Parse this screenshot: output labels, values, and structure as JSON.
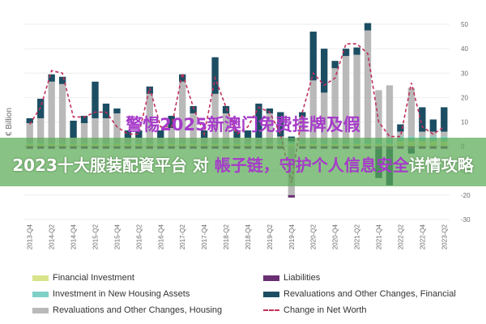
{
  "overlay": {
    "line1": "警惕2025新澳门免费挂牌及假",
    "line2_lead": "2023十大服装配資平台 对 ",
    "line2_purple": "帳子链，守护个人信息安全",
    "line2_tail": "详情攻略"
  },
  "chart_data": {
    "type": "bar",
    "ylabel": "€ Billion",
    "ylim": [
      -30,
      50
    ],
    "yticks": [
      -30,
      -20,
      -10,
      0,
      10,
      20,
      30,
      40,
      50
    ],
    "categories": [
      "2013-Q4",
      "2014-Q1",
      "2014-Q2",
      "2014-Q3",
      "2014-Q4",
      "2015-Q1",
      "2015-Q2",
      "2015-Q3",
      "2015-Q4",
      "2016-Q1",
      "2016-Q2",
      "2016-Q3",
      "2016-Q4",
      "2017-Q1",
      "2017-Q2",
      "2017-Q3",
      "2017-Q4",
      "2018-Q1",
      "2018-Q2",
      "2018-Q3",
      "2018-Q4",
      "2019-Q1",
      "2019-Q2",
      "2019-Q3",
      "2019-Q4",
      "2020-Q1",
      "2020-Q2",
      "2020-Q3",
      "2020-Q4",
      "2021-Q1",
      "2021-Q2",
      "2021-Q3",
      "2021-Q4",
      "2022-Q1",
      "2022-Q2",
      "2022-Q3",
      "2022-Q4",
      "2023-Q1",
      "2023-Q2"
    ],
    "xticks": [
      "2013-Q4",
      "2014-Q2",
      "2014-Q4",
      "2015-Q2",
      "2015-Q4",
      "2016-Q2",
      "2016-Q4",
      "2017-Q2",
      "2017-Q4",
      "2018-Q2",
      "2018-Q4",
      "2019-Q2",
      "2019-Q4",
      "2020-Q2",
      "2020-Q4",
      "2021-Q2",
      "2021-Q4",
      "2022-Q2",
      "2022-Q4",
      "2023-Q2"
    ],
    "series": [
      {
        "name": "Financial Investment",
        "color": "#d9e38a",
        "values": [
          1,
          1,
          1,
          1,
          1,
          1,
          1,
          1,
          1,
          1,
          1,
          1,
          1,
          1,
          1,
          1,
          1,
          1,
          1,
          1,
          1,
          1,
          1,
          1,
          1,
          1,
          1,
          1,
          1,
          1,
          1,
          1,
          1,
          1,
          2,
          2,
          2,
          2,
          2
        ]
      },
      {
        "name": "Investment in New Housing Assets",
        "color": "#7fd0c8",
        "values": [
          0.5,
          0.5,
          0.5,
          0.5,
          0.5,
          0.5,
          0.5,
          0.5,
          0.5,
          0.5,
          0.5,
          0.5,
          0.5,
          0.5,
          0.5,
          0.5,
          0.5,
          0.5,
          0.5,
          0.5,
          0.5,
          0.5,
          0.5,
          1,
          1,
          1,
          1,
          1,
          1,
          1,
          1.5,
          1.5,
          2,
          2,
          2,
          2,
          2,
          2,
          2
        ]
      },
      {
        "name": "Revaluations and Other Changes, Housing",
        "color": "#b9b9b9",
        "values": [
          8,
          10,
          25,
          24,
          2,
          8,
          10,
          10,
          12,
          2,
          2,
          20,
          2,
          6,
          25,
          12,
          2,
          20,
          12,
          2,
          2,
          2,
          12,
          2,
          -20,
          10,
          25,
          20,
          30,
          35,
          35,
          45,
          20,
          22,
          2,
          20,
          2,
          2,
          2
        ]
      },
      {
        "name": "Liabilities",
        "color": "#6a2f72",
        "values": [
          -1,
          -1,
          -1,
          -1,
          -1,
          -1,
          -1,
          -1,
          -1,
          -1,
          -1,
          -1,
          -1,
          -1,
          -1,
          -1,
          -1,
          -1,
          -1,
          -1,
          -1,
          -1,
          -1,
          -1,
          -1,
          -1,
          -1,
          -1,
          -1,
          -1,
          -1,
          -1,
          -1,
          -1,
          -1,
          -1,
          -1,
          -1,
          -1
        ]
      },
      {
        "name": "Revaluations and Other Changes, Financial",
        "color": "#1c4e63",
        "values": [
          2,
          8,
          3,
          3,
          7,
          3,
          15,
          6,
          2,
          3,
          3,
          3,
          3,
          5,
          3,
          3,
          3,
          15,
          3,
          3,
          3,
          14,
          2,
          10,
          2,
          2,
          20,
          18,
          3,
          3,
          3,
          3,
          -12,
          -15,
          3,
          -2,
          10,
          5,
          10
        ]
      }
    ],
    "line": {
      "name": "Change in Net Worth",
      "color": "#c0305a",
      "values": [
        9,
        16,
        31,
        30,
        12,
        12,
        14,
        14,
        8,
        5,
        5,
        24,
        8,
        8,
        30,
        16,
        5,
        28,
        16,
        5,
        8,
        16,
        14,
        5,
        -15,
        14,
        30,
        25,
        28,
        42,
        42,
        38,
        10,
        4,
        4,
        26,
        8,
        5,
        8
      ]
    }
  }
}
